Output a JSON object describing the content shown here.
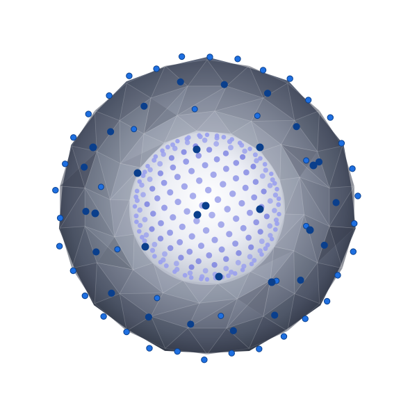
{
  "scene": {
    "background": "#ffffff",
    "colors": {
      "shell_rim": "#2b3240",
      "shell_mid": "#7a8498",
      "shell_light": "#c9ced9",
      "inner_glow": "#f2f2f7",
      "outer_vertex": "#1e6fe0",
      "outer_vertex_dark": "#0a3f8c",
      "inner_point": "#6b72e0",
      "inner_point_light": "#9aa0ee"
    }
  }
}
